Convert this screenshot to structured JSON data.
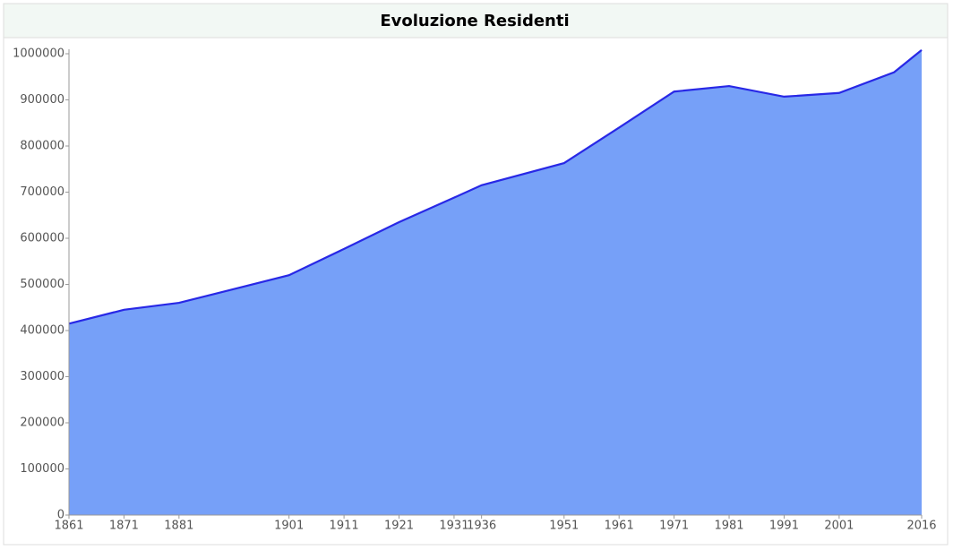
{
  "chart_data": {
    "type": "area",
    "title": "Evoluzione Residenti",
    "x": [
      1861,
      1871,
      1881,
      1901,
      1911,
      1921,
      1931,
      1936,
      1951,
      1961,
      1971,
      1981,
      1991,
      2001,
      2011,
      2016
    ],
    "values": [
      415000,
      445000,
      460000,
      520000,
      577000,
      635000,
      688000,
      715000,
      763000,
      840000,
      918000,
      930000,
      907000,
      915000,
      960000,
      1008000
    ],
    "fill": "#76a0f8",
    "line_color": "#2828e6",
    "xlim": [
      1861,
      2016
    ],
    "xticks": [
      1861,
      1871,
      1881,
      1901,
      1911,
      1921,
      1931,
      1936,
      1951,
      1961,
      1971,
      1981,
      1991,
      2001,
      2016
    ],
    "ylim": [
      0,
      1000000
    ],
    "yticks": [
      0,
      100000,
      200000,
      300000,
      400000,
      500000,
      600000,
      700000,
      800000,
      900000,
      1000000
    ]
  }
}
